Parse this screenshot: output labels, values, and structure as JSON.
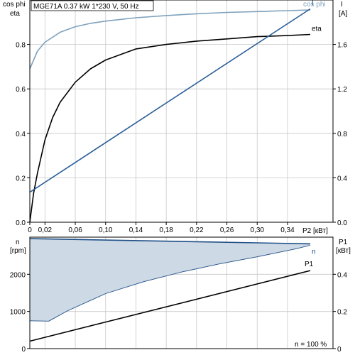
{
  "title": "MGE71A   0.37 kW    1*230 V, 50 Hz",
  "colors": {
    "cosphi": "#7fa1bd",
    "eta": "#000000",
    "current": "#2b5f98",
    "speed": "#1f4f86",
    "speed_fill": "#cdd9e5",
    "p1": "#000000",
    "grid": "#c8c8c8"
  },
  "chart_data": [
    {
      "type": "line",
      "title": "MGE71A   0.37 kW    1*230 V, 50 Hz",
      "xlabel": "P2 [кВт]",
      "ylabel_left": [
        "cos phi",
        "eta"
      ],
      "ylabel_right": [
        "I",
        "[A]"
      ],
      "xlim": [
        0,
        0.4
      ],
      "ylim_left": [
        0,
        1.0
      ],
      "ylim_right": [
        0,
        2.0
      ],
      "x_ticks": [
        0,
        0.02,
        0.06,
        0.1,
        0.14,
        0.18,
        0.22,
        0.26,
        0.3,
        0.34
      ],
      "x_tick_labels": [
        "0",
        "0,02",
        "0,06",
        "0,10",
        "0,14",
        "0,18",
        "0,22",
        "0,26",
        "0,30",
        "0,34"
      ],
      "y_left_ticks": [
        0,
        0.2,
        0.4,
        0.6,
        0.8
      ],
      "y_left_tick_labels": [
        "0.0",
        "0.2",
        "0.4",
        "0.6",
        "0.8"
      ],
      "y_right_ticks": [
        0,
        0.4,
        0.8,
        1.2,
        1.6
      ],
      "y_right_tick_labels": [
        "0.0",
        "0.4",
        "0.8",
        "1.2",
        "1.6"
      ],
      "grid": true,
      "series": [
        {
          "name": "cos phi",
          "axis": "left",
          "x": [
            0,
            0.01,
            0.02,
            0.04,
            0.06,
            0.08,
            0.1,
            0.14,
            0.18,
            0.22,
            0.26,
            0.3,
            0.34,
            0.37
          ],
          "values": [
            0.69,
            0.77,
            0.81,
            0.855,
            0.88,
            0.895,
            0.905,
            0.92,
            0.93,
            0.938,
            0.944,
            0.948,
            0.952,
            0.955
          ]
        },
        {
          "name": "eta",
          "axis": "left",
          "x": [
            0,
            0.005,
            0.01,
            0.02,
            0.03,
            0.04,
            0.06,
            0.08,
            0.1,
            0.14,
            0.18,
            0.22,
            0.26,
            0.3,
            0.34,
            0.37
          ],
          "values": [
            0.0,
            0.13,
            0.22,
            0.37,
            0.47,
            0.54,
            0.63,
            0.69,
            0.73,
            0.78,
            0.8,
            0.815,
            0.825,
            0.835,
            0.84,
            0.845
          ]
        },
        {
          "name": "I",
          "axis": "right",
          "x": [
            0,
            0.37
          ],
          "values": [
            0.27,
            1.92
          ]
        }
      ]
    },
    {
      "type": "area",
      "ylabel_left": [
        "n",
        "[rpm]"
      ],
      "ylabel_right": [
        "P1",
        "[кВт]"
      ],
      "xlim": [
        0,
        0.4
      ],
      "ylim_left": [
        0,
        3000
      ],
      "ylim_right": [
        0,
        0.6
      ],
      "y_left_ticks": [
        0,
        1000,
        2000
      ],
      "y_left_tick_labels": [
        "0",
        "1000",
        "2000"
      ],
      "y_right_ticks": [
        0,
        0.2,
        0.4
      ],
      "y_right_tick_labels": [
        "0",
        "0.2",
        "0.4"
      ],
      "grid": true,
      "annotation": "n = 100 %",
      "series": [
        {
          "name": "",
          "axis": "left",
          "x": [
            0,
            0.37
          ],
          "values": [
            2960,
            2820
          ]
        },
        {
          "name": "n",
          "axis": "left",
          "x": [
            0,
            0.025,
            0.05,
            0.1,
            0.15,
            0.2,
            0.25,
            0.3,
            0.35,
            0.37
          ],
          "values": [
            750,
            740,
            1020,
            1480,
            1800,
            2060,
            2280,
            2470,
            2680,
            2780
          ]
        },
        {
          "name": "P1",
          "axis": "right",
          "x": [
            0,
            0.37
          ],
          "values": [
            0.04,
            0.42
          ]
        }
      ]
    }
  ]
}
